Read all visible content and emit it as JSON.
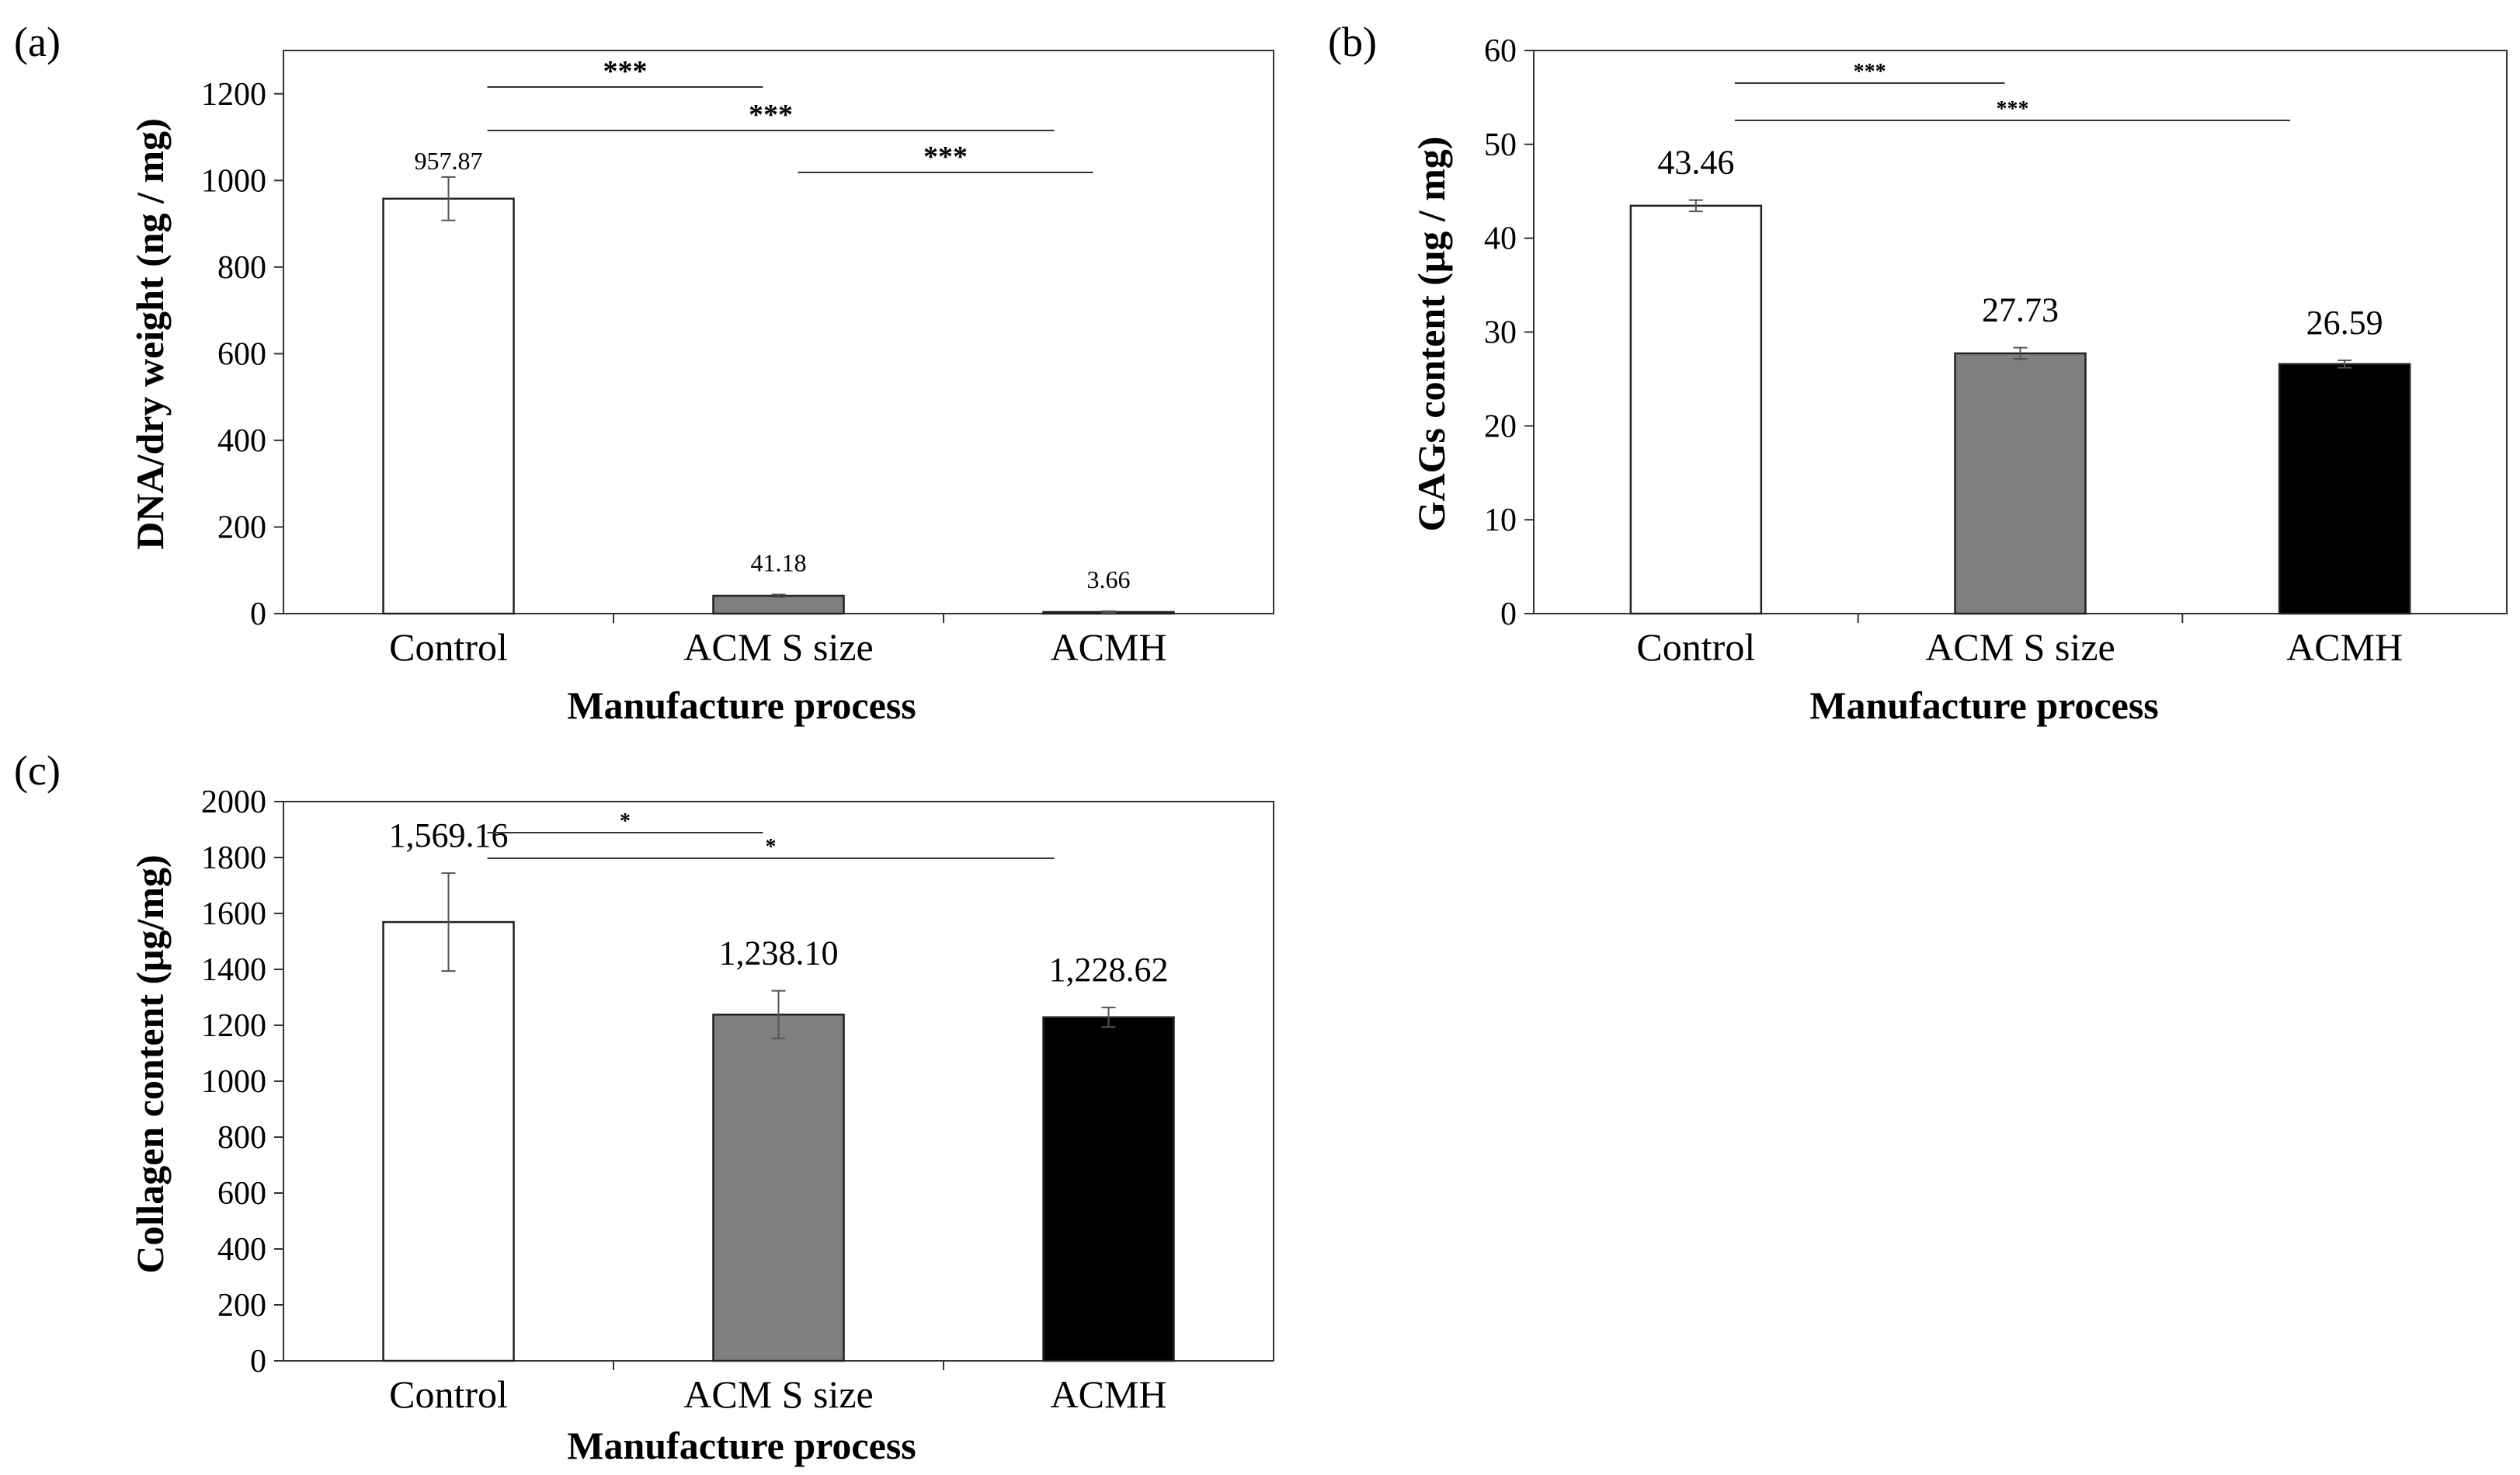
{
  "chart_data": [
    {
      "panel": "(a)",
      "type": "bar",
      "categories": [
        "Control",
        "ACM S size",
        "ACMH"
      ],
      "values": [
        957.87,
        41.18,
        3.66
      ],
      "value_labels": [
        "957.87",
        "41.18",
        "3.66"
      ],
      "errors": [
        50,
        3,
        2
      ],
      "bar_colors": [
        "#ffffff",
        "#7f7f7f",
        "#000000"
      ],
      "xlabel": "Manufacture process",
      "ylabel": "DNA/dry weight (ng / mg)",
      "ylim": [
        0,
        1300
      ],
      "yticks": [
        "0",
        "200",
        "400",
        "600",
        "800",
        "1000",
        "1200"
      ],
      "grid": false,
      "significance": [
        {
          "from": 0,
          "to": 1,
          "label": "***"
        },
        {
          "from": 0,
          "to": 2,
          "label": "***"
        },
        {
          "from": 1,
          "to": 2,
          "label": "***"
        }
      ]
    },
    {
      "panel": "(b)",
      "type": "bar",
      "categories": [
        "Control",
        "ACM S size",
        "ACMH"
      ],
      "values": [
        43.46,
        27.73,
        26.59
      ],
      "value_labels": [
        "43.46",
        "27.73",
        "26.59"
      ],
      "errors": [
        0.6,
        0.6,
        0.4
      ],
      "bar_colors": [
        "#ffffff",
        "#7f7f7f",
        "#000000"
      ],
      "xlabel": "Manufacture process",
      "ylabel": "GAGs content  (μg / mg)",
      "ylim": [
        0,
        60
      ],
      "yticks": [
        "0",
        "10",
        "20",
        "30",
        "40",
        "50",
        "60"
      ],
      "grid": false,
      "significance": [
        {
          "from": 0,
          "to": 1,
          "label": "***"
        },
        {
          "from": 0,
          "to": 2,
          "label": "***"
        }
      ]
    },
    {
      "panel": "(c)",
      "type": "bar",
      "categories": [
        "Control",
        "ACM S size",
        "ACMH"
      ],
      "values": [
        1569.16,
        1238.1,
        1228.62
      ],
      "value_labels": [
        "1,569.16",
        "1,238.10",
        "1,228.62"
      ],
      "errors": [
        175,
        85,
        35
      ],
      "bar_colors": [
        "#ffffff",
        "#7f7f7f",
        "#000000"
      ],
      "xlabel": "Manufacture process",
      "ylabel": "Collagen content (μg/mg)",
      "ylim": [
        0,
        2000
      ],
      "yticks": [
        "0",
        "200",
        "400",
        "600",
        "800",
        "1000",
        "1200",
        "1400",
        "1600",
        "1800",
        "2000"
      ],
      "grid": false,
      "significance": [
        {
          "from": 0,
          "to": 1,
          "label": "*"
        },
        {
          "from": 0,
          "to": 2,
          "label": "*"
        }
      ]
    }
  ]
}
